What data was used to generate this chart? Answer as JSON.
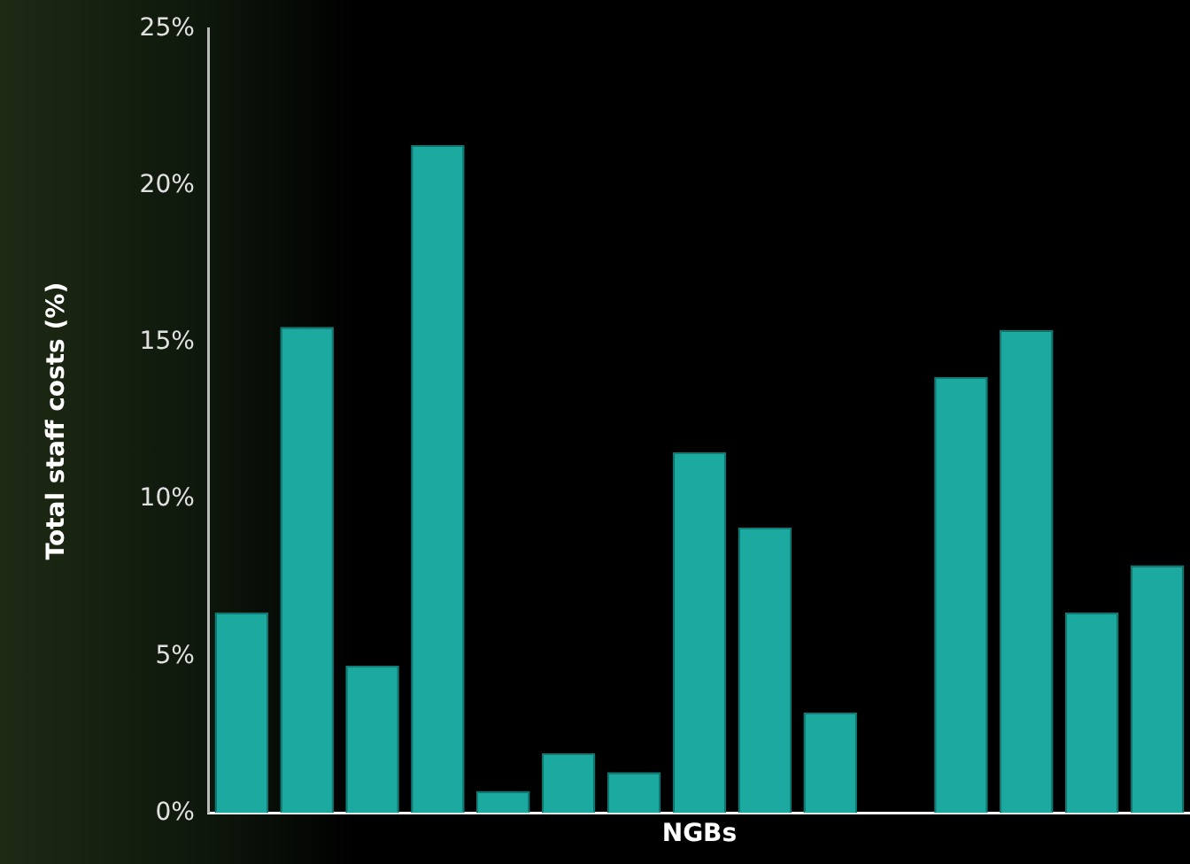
{
  "chart_data": {
    "type": "bar",
    "xlabel": "NGBs",
    "ylabel": "Total staff costs (%)",
    "categories": [
      null,
      null,
      null,
      null,
      null,
      null,
      null,
      null,
      null,
      null,
      null,
      null,
      null,
      null,
      null
    ],
    "values": [
      6.4,
      15.5,
      4.7,
      21.3,
      0.7,
      1.9,
      1.3,
      11.5,
      9.1,
      3.2,
      0,
      13.9,
      15.4,
      6.4,
      7.9
    ],
    "color": "#1ca9a0",
    "ylim": [
      0,
      25
    ],
    "yticks": [
      {
        "value": 0,
        "label": "0%"
      },
      {
        "value": 5,
        "label": "5%"
      },
      {
        "value": 10,
        "label": "10%"
      },
      {
        "value": 15,
        "label": "15%"
      },
      {
        "value": 20,
        "label": "20%"
      },
      {
        "value": 25,
        "label": "25%"
      }
    ],
    "tick_labels": "y",
    "grid": false,
    "legend": false
  }
}
